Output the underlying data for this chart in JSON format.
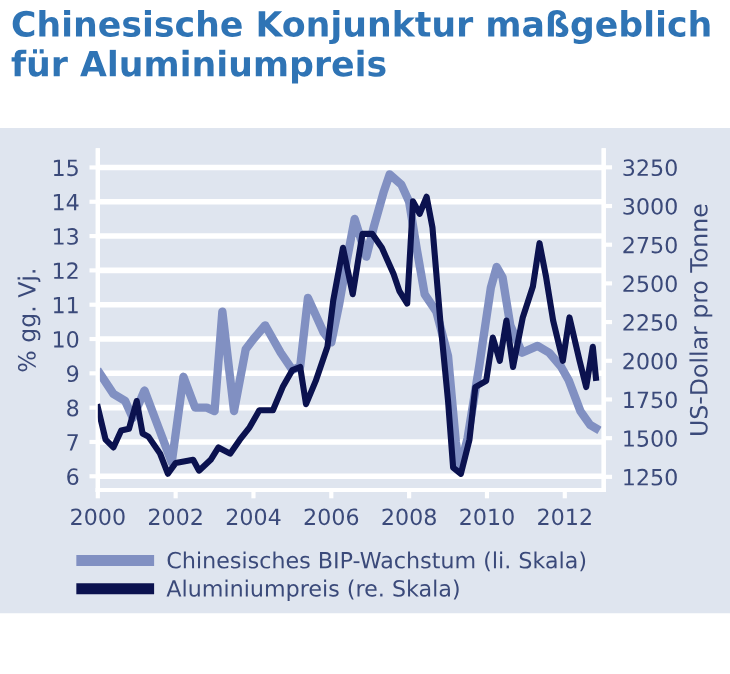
{
  "chart_data": {
    "type": "line",
    "title": "Chinesische Konjunktur maßgeblich für Aluminiumpreis",
    "ylabel": "% gg. Vj.",
    "y2label": "US-Dollar pro Tonne",
    "xlim": [
      2000,
      2013
    ],
    "xticks": [
      2000,
      2002,
      2004,
      2006,
      2008,
      2010,
      2012
    ],
    "ylim": [
      5.6,
      15.5
    ],
    "yticks": [
      6,
      7,
      8,
      9,
      10,
      11,
      12,
      13,
      14,
      15
    ],
    "y2lim": [
      1165,
      3360
    ],
    "y2ticks": [
      1250,
      1500,
      1750,
      2000,
      2250,
      2500,
      2750,
      3000,
      3250
    ],
    "grid": "y",
    "legend": "bottom",
    "marker": "none",
    "line_style": "solid",
    "series": [
      {
        "name": "Chinesisches BIP-Wachstum (li. Skala)",
        "color": "#8190c2",
        "axis": "y",
        "x": [
          2000.05,
          2000.4,
          2000.7,
          2000.9,
          2001.2,
          2001.5,
          2001.9,
          2002.2,
          2002.5,
          2002.8,
          2003.0,
          2003.2,
          2003.5,
          2003.8,
          2004.0,
          2004.3,
          2004.7,
          2005.0,
          2005.2,
          2005.4,
          2005.8,
          2006.0,
          2006.2,
          2006.4,
          2006.6,
          2006.9,
          2007.1,
          2007.35,
          2007.5,
          2007.8,
          2008.0,
          2008.2,
          2008.4,
          2008.7,
          2009.0,
          2009.2,
          2009.3,
          2009.5,
          2009.8,
          2010.1,
          2010.25,
          2010.4,
          2010.6,
          2010.9,
          2011.3,
          2011.6,
          2011.9,
          2012.1,
          2012.4,
          2012.65,
          2012.8
        ],
        "values": [
          9.0,
          8.4,
          8.2,
          7.7,
          8.5,
          7.6,
          6.4,
          8.9,
          8.0,
          8.0,
          7.9,
          10.8,
          7.9,
          9.7,
          10.0,
          10.4,
          9.6,
          9.1,
          9.2,
          11.2,
          10.2,
          9.9,
          11.0,
          12.3,
          13.5,
          12.4,
          13.3,
          14.3,
          14.8,
          14.5,
          14.0,
          12.6,
          11.3,
          10.8,
          9.5,
          7.0,
          6.2,
          7.1,
          9.2,
          11.5,
          12.1,
          11.8,
          10.4,
          9.6,
          9.8,
          9.6,
          9.2,
          8.8,
          7.9,
          7.5,
          7.4
        ]
      },
      {
        "name": "Aluminiumpreis (re. Skala)",
        "color": "#0b124f",
        "axis": "y2",
        "x": [
          2000.0,
          2000.2,
          2000.4,
          2000.6,
          2000.8,
          2001.0,
          2001.15,
          2001.3,
          2001.6,
          2001.8,
          2002.0,
          2002.45,
          2002.6,
          2002.9,
          2003.1,
          2003.4,
          2003.65,
          2003.9,
          2004.15,
          2004.5,
          2004.75,
          2005.0,
          2005.2,
          2005.35,
          2005.6,
          2005.9,
          2006.05,
          2006.3,
          2006.55,
          2006.8,
          2007.05,
          2007.3,
          2007.6,
          2007.75,
          2007.95,
          2008.1,
          2008.27,
          2008.45,
          2008.6,
          2008.8,
          2009.0,
          2009.13,
          2009.33,
          2009.55,
          2009.7,
          2009.98,
          2010.15,
          2010.33,
          2010.5,
          2010.67,
          2010.92,
          2011.18,
          2011.35,
          2011.52,
          2011.7,
          2011.95,
          2012.12,
          2012.38,
          2012.55,
          2012.72,
          2012.8
        ],
        "values": [
          1700,
          1490,
          1440,
          1550,
          1560,
          1740,
          1530,
          1510,
          1400,
          1270,
          1340,
          1360,
          1290,
          1360,
          1440,
          1400,
          1490,
          1570,
          1680,
          1680,
          1830,
          1940,
          1960,
          1720,
          1870,
          2090,
          2390,
          2730,
          2430,
          2820,
          2820,
          2730,
          2560,
          2450,
          2370,
          3030,
          2950,
          3060,
          2860,
          2260,
          1740,
          1310,
          1270,
          1490,
          1830,
          1870,
          2150,
          2000,
          2260,
          1960,
          2280,
          2480,
          2760,
          2540,
          2260,
          2000,
          2280,
          2000,
          1830,
          2090,
          1890
        ]
      }
    ]
  }
}
